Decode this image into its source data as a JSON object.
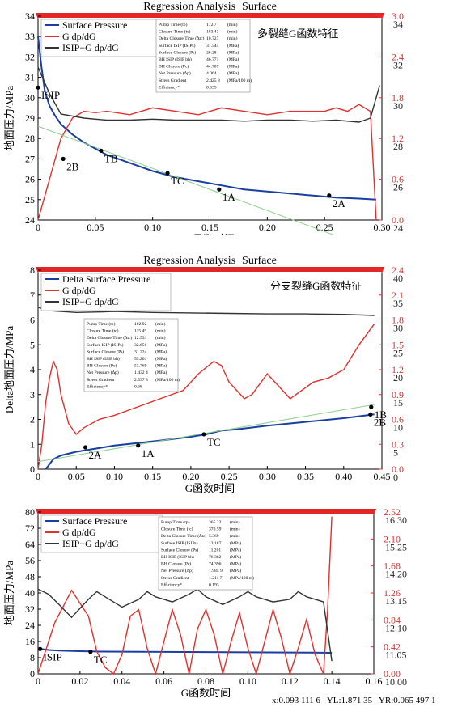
{
  "status_bar": {
    "x_readout": "x:0.093 111 6",
    "yl_readout": "YL:1.871 35",
    "yr_readout": "YR:0.065 497 1"
  },
  "chart_data": [
    {
      "type": "line",
      "title": "Regression Analysis−Surface",
      "annotation": "多裂缝G函数特征",
      "xlabel": "G函数时间",
      "ylabel": "地面压力/MPa",
      "xlim": [
        0,
        0.3
      ],
      "xticks": [
        "0",
        "0.05",
        "0.10",
        "0.15",
        "0.20",
        "0.25",
        "0.30"
      ],
      "ylim": [
        24,
        34
      ],
      "yticks": [
        "24",
        "25",
        "26",
        "27",
        "28",
        "29",
        "30",
        "31",
        "32",
        "33",
        "34"
      ],
      "y2_red": {
        "ylim": [
          0.0,
          3.0
        ],
        "ticks": [
          "0.0",
          "0.6",
          "1.2",
          "1.8",
          "2.4",
          "3.0"
        ]
      },
      "y2_black": {
        "ylim": [
          24,
          34
        ],
        "ticks": [
          "24",
          "26",
          "28",
          "30",
          "32",
          "34"
        ]
      },
      "legend": [
        "Surface Pressure",
        "G dp/dG",
        "ISIP−G dp/dG"
      ],
      "legend_position": "top-left",
      "info_table": [
        [
          "Pump Time (tp)",
          "172.7",
          "(min)"
        ],
        [
          "Closure Time (tc)",
          "183.43",
          "(min)"
        ],
        [
          "Delta Closure Time (∆tc)",
          "10.727",
          "(min)"
        ],
        [
          "Surface ISIP (ISIPs)",
          "31.544",
          "(MPa)"
        ],
        [
          "Surface Closure (Ps)",
          "26.28",
          "(MPa)"
        ],
        [
          "BH ISIP (ISIP bh)",
          "46.771",
          "(MPa)"
        ],
        [
          "BH Closure (Pc)",
          "44.707",
          "(MPa)"
        ],
        [
          "Net Pressure (∆p)",
          "4.064",
          "(MPa)"
        ],
        [
          "Stress Gradient",
          "2.425 8",
          "(MPa/100 m)"
        ],
        [
          "Efficiency*",
          "0.635",
          ""
        ]
      ],
      "series": [
        {
          "name": "Surface Pressure",
          "color": "#1a3fa0",
          "x": [
            0,
            0.003,
            0.006,
            0.01,
            0.015,
            0.02,
            0.03,
            0.04,
            0.05,
            0.06,
            0.08,
            0.1,
            0.12,
            0.14,
            0.16,
            0.18,
            0.2,
            0.22,
            0.24,
            0.26,
            0.28,
            0.295
          ],
          "y": [
            33.0,
            31.5,
            30.3,
            29.6,
            29.1,
            28.7,
            28.2,
            27.8,
            27.5,
            27.2,
            26.8,
            26.4,
            26.1,
            25.9,
            25.7,
            25.5,
            25.4,
            25.3,
            25.2,
            25.1,
            25.05,
            25.0
          ]
        },
        {
          "name": "G dp/dG",
          "color": "#e03030",
          "axis": "y2_red",
          "x": [
            0,
            0.01,
            0.02,
            0.03,
            0.04,
            0.05,
            0.06,
            0.08,
            0.1,
            0.12,
            0.14,
            0.16,
            0.18,
            0.2,
            0.22,
            0.24,
            0.25,
            0.26,
            0.27,
            0.28,
            0.29,
            0.295
          ],
          "y": [
            0.0,
            0.6,
            1.2,
            1.5,
            1.6,
            1.58,
            1.6,
            1.55,
            1.65,
            1.6,
            1.55,
            1.65,
            1.6,
            1.55,
            1.6,
            1.6,
            1.6,
            1.65,
            1.6,
            1.7,
            1.6,
            0.0
          ]
        },
        {
          "name": "ISIP−G dp/dG",
          "color": "#333333",
          "axis": "y2_black",
          "x": [
            0,
            0.01,
            0.02,
            0.04,
            0.06,
            0.08,
            0.1,
            0.12,
            0.14,
            0.16,
            0.18,
            0.2,
            0.22,
            0.24,
            0.26,
            0.28,
            0.29,
            0.298
          ],
          "y": [
            31.5,
            30.2,
            29.2,
            29.0,
            28.9,
            28.9,
            28.95,
            28.9,
            28.9,
            28.9,
            28.85,
            28.9,
            28.9,
            28.85,
            28.9,
            28.8,
            29.0,
            30.6
          ]
        },
        {
          "name": "",
          "color": "#8ed08e",
          "x": [
            0,
            0.3
          ],
          "y": [
            28.6,
            22.4
          ]
        }
      ],
      "markers": [
        {
          "label": "ISIP",
          "x": 0.0,
          "y": 30.5
        },
        {
          "label": "2B",
          "x": 0.022,
          "y": 27.0
        },
        {
          "label": "TB",
          "x": 0.055,
          "y": 27.4
        },
        {
          "label": "TC",
          "x": 0.113,
          "y": 26.3
        },
        {
          "label": "1A",
          "x": 0.158,
          "y": 25.5
        },
        {
          "label": "2A",
          "x": 0.254,
          "y": 25.2
        }
      ]
    },
    {
      "type": "line",
      "title": "Regression Analysis−Surface",
      "annotation": "分支裂缝G函数特征",
      "xlabel": "G函数时间",
      "ylabel": "Delta地面压力/MPa",
      "xlim": [
        0,
        0.45
      ],
      "xticks": [
        "0",
        "0.05",
        "0.10",
        "0.15",
        "0.20",
        "0.25",
        "0.30",
        "0.35",
        "0.40",
        "0.45"
      ],
      "ylim": [
        0,
        8
      ],
      "yticks": [
        "0",
        "1",
        "2",
        "3",
        "4",
        "5",
        "6",
        "7",
        "8"
      ],
      "y2_red": {
        "ylim": [
          0.0,
          2.4
        ],
        "ticks": [
          "0.0",
          "0.3",
          "0.6",
          "0.9",
          "1.2",
          "1.5",
          "1.8",
          "2.1",
          "2.4"
        ]
      },
      "y2_black": {
        "ylim": [
          0,
          40
        ],
        "ticks": [
          "0",
          "5",
          "10",
          "15",
          "20",
          "25",
          "30",
          "35",
          "40"
        ]
      },
      "legend": [
        "Delta Surface Pressure",
        "G dp/dG",
        "ISIP−G dp/dG"
      ],
      "legend_position": "top-left",
      "info_table": [
        [
          "Pump Time (tp)",
          "102.92",
          "(min)"
        ],
        [
          "Closure Time (tc)",
          "115.45",
          "(min)"
        ],
        [
          "Delta Closure Time (∆tc)",
          "12.531",
          "(min)"
        ],
        [
          "Surface ISIP (ISIPs)",
          "32.656",
          "(MPa)"
        ],
        [
          "Surface Closure (Ps)",
          "31.224",
          "(MPa)"
        ],
        [
          "BH ISIP (ISIP bh)",
          "55.201",
          "(MPa)"
        ],
        [
          "BH Closure (Pc)",
          "53.769",
          "(MPa)"
        ],
        [
          "Net Pressure (∆p)",
          "1.432 4",
          "(MPa)"
        ],
        [
          "Stress Gradient",
          "2.537 8",
          "(MPa/100 m)"
        ],
        [
          "Efficiency*",
          "0.68",
          ""
        ]
      ],
      "series": [
        {
          "name": "Delta Surface Pressure",
          "color": "#1a3fa0",
          "x": [
            0.01,
            0.015,
            0.02,
            0.03,
            0.05,
            0.08,
            0.1,
            0.13,
            0.16,
            0.2,
            0.22,
            0.24,
            0.26,
            0.3,
            0.35,
            0.4,
            0.44
          ],
          "y": [
            0.0,
            0.2,
            0.4,
            0.55,
            0.7,
            0.85,
            0.95,
            1.05,
            1.15,
            1.3,
            1.4,
            1.55,
            1.6,
            1.75,
            1.9,
            2.05,
            2.2
          ]
        },
        {
          "name": "G dp/dG",
          "color": "#e03030",
          "axis": "y2_red",
          "x": [
            0.0,
            0.005,
            0.01,
            0.015,
            0.02,
            0.025,
            0.03,
            0.04,
            0.05,
            0.06,
            0.08,
            0.1,
            0.13,
            0.16,
            0.19,
            0.21,
            0.23,
            0.24,
            0.25,
            0.27,
            0.28,
            0.3,
            0.33,
            0.36,
            0.38,
            0.4,
            0.42,
            0.44
          ],
          "y": [
            0.0,
            0.3,
            0.8,
            1.1,
            1.3,
            1.2,
            0.9,
            0.55,
            0.42,
            0.5,
            0.6,
            0.65,
            0.75,
            0.85,
            0.95,
            1.15,
            1.3,
            1.25,
            1.05,
            0.85,
            0.9,
            1.15,
            0.85,
            1.05,
            1.1,
            1.2,
            1.5,
            1.75
          ]
        },
        {
          "name": "ISIP−G dp/dG",
          "color": "#333333",
          "axis": "y2_black",
          "x": [
            0.0,
            0.02,
            0.05,
            0.08,
            0.1,
            0.15,
            0.2,
            0.25,
            0.3,
            0.35,
            0.4,
            0.44
          ],
          "y": [
            32.5,
            31.8,
            31.5,
            31.6,
            31.7,
            31.5,
            31.4,
            31.3,
            31.2,
            31.2,
            31.1,
            30.9
          ]
        },
        {
          "name": "",
          "color": "#8ed08e",
          "x": [
            0,
            0.44
          ],
          "y": [
            0.3,
            2.6
          ]
        }
      ],
      "markers": [
        {
          "label": "2A",
          "x": 0.062,
          "y": 0.88
        },
        {
          "label": "1A",
          "x": 0.131,
          "y": 0.95
        },
        {
          "label": "TC",
          "x": 0.217,
          "y": 1.4
        },
        {
          "label": "1B",
          "x": 0.436,
          "y": 2.5
        },
        {
          "label": "2B",
          "x": 0.435,
          "y": 2.2
        }
      ]
    },
    {
      "type": "line",
      "title": "",
      "annotation": "",
      "xlabel": "G函数时间",
      "ylabel": "地面压力/MPa",
      "xlim": [
        0,
        0.16
      ],
      "xticks": [
        "0",
        "0.02",
        "0.04",
        "0.06",
        "0.08",
        "0.10",
        "0.12",
        "0.14",
        "0.16"
      ],
      "ylim": [
        0,
        80
      ],
      "yticks": [
        "0",
        "8",
        "16",
        "24",
        "32",
        "40",
        "48",
        "56",
        "64",
        "72",
        "80"
      ],
      "y2_red": {
        "ylim": [
          0.0,
          2.52
        ],
        "ticks": [
          "0.00",
          "0.42",
          "0.84",
          "1.26",
          "1.68",
          "2.10",
          "2.52"
        ]
      },
      "y2_black": {
        "ylim": [
          10.0,
          16.3
        ],
        "ticks": [
          "10.00",
          "11.05",
          "12.10",
          "13.15",
          "14.20",
          "15.25",
          "16.30"
        ]
      },
      "legend": [
        "Surface Pressure",
        "G dp/dG",
        "ISIP−G dp/dG"
      ],
      "legend_position": "top-left",
      "info_table": [
        [
          "Pump Time (tp)",
          "365.22",
          "(min)"
        ],
        [
          "Closure Time (tc)",
          "370.59",
          "(min)"
        ],
        [
          "Delta Closure Time (∆tc)",
          "5.369",
          "(min)"
        ],
        [
          "Surface ISIP (ISIPs)",
          "13.187",
          "(MPa)"
        ],
        [
          "Surface Closure (Ps)",
          "11.201",
          "(MPa)"
        ],
        [
          "BH ISIP (ISIP bh)",
          "76.382",
          "(MPa)"
        ],
        [
          "BH Closure (Pc)",
          "74.396",
          "(MPa)"
        ],
        [
          "Net Pressure (∆p)",
          "1.985 9",
          "(MPa)"
        ],
        [
          "Stress Gradient",
          "1.211 7",
          "(MPa/100 m)"
        ],
        [
          "Efficiency*",
          "0.193",
          ""
        ]
      ],
      "series": [
        {
          "name": "Surface Pressure",
          "color": "#1a3fa0",
          "x": [
            0,
            0.005,
            0.01,
            0.02,
            0.03,
            0.05,
            0.07,
            0.09,
            0.11,
            0.13,
            0.14
          ],
          "y": [
            12.5,
            11.8,
            11.5,
            11.2,
            11.0,
            10.9,
            10.8,
            10.7,
            10.6,
            10.5,
            10.4
          ]
        },
        {
          "name": "G dp/dG",
          "color": "#e03030",
          "axis": "y2_red",
          "x": [
            0,
            0.008,
            0.016,
            0.024,
            0.028,
            0.032,
            0.036,
            0.04,
            0.044,
            0.048,
            0.052,
            0.056,
            0.06,
            0.064,
            0.068,
            0.072,
            0.076,
            0.08,
            0.084,
            0.088,
            0.092,
            0.096,
            0.1,
            0.104,
            0.108,
            0.112,
            0.116,
            0.12,
            0.124,
            0.128,
            0.132,
            0.136,
            0.138,
            0.14
          ],
          "y": [
            0.0,
            0.8,
            1.3,
            0.9,
            0.35,
            0.1,
            0.0,
            0.3,
            0.9,
            1.0,
            0.4,
            0.0,
            0.5,
            1.0,
            0.6,
            0.0,
            0.7,
            1.0,
            0.6,
            0.0,
            0.5,
            0.95,
            0.4,
            0.0,
            0.5,
            1.0,
            0.55,
            0.0,
            0.4,
            0.85,
            0.3,
            0.0,
            1.0,
            2.45
          ]
        },
        {
          "name": "ISIP−G dp/dG",
          "color": "#333333",
          "axis": "y2_black",
          "x": [
            0,
            0.005,
            0.01,
            0.016,
            0.024,
            0.028,
            0.032,
            0.04,
            0.048,
            0.052,
            0.056,
            0.064,
            0.072,
            0.076,
            0.08,
            0.088,
            0.096,
            0.1,
            0.104,
            0.112,
            0.12,
            0.124,
            0.128,
            0.136,
            0.14
          ],
          "y": [
            13.3,
            13.1,
            12.7,
            12.2,
            12.9,
            13.2,
            13.0,
            12.6,
            12.9,
            13.2,
            13.0,
            12.8,
            13.1,
            13.3,
            13.0,
            12.7,
            13.0,
            13.2,
            13.0,
            12.8,
            12.9,
            13.2,
            13.0,
            12.8,
            10.5
          ]
        }
      ],
      "markers": [
        {
          "label": "ISIP",
          "x": 0.001,
          "y": 12.3
        },
        {
          "label": "TC",
          "x": 0.025,
          "y": 10.9
        }
      ]
    }
  ]
}
